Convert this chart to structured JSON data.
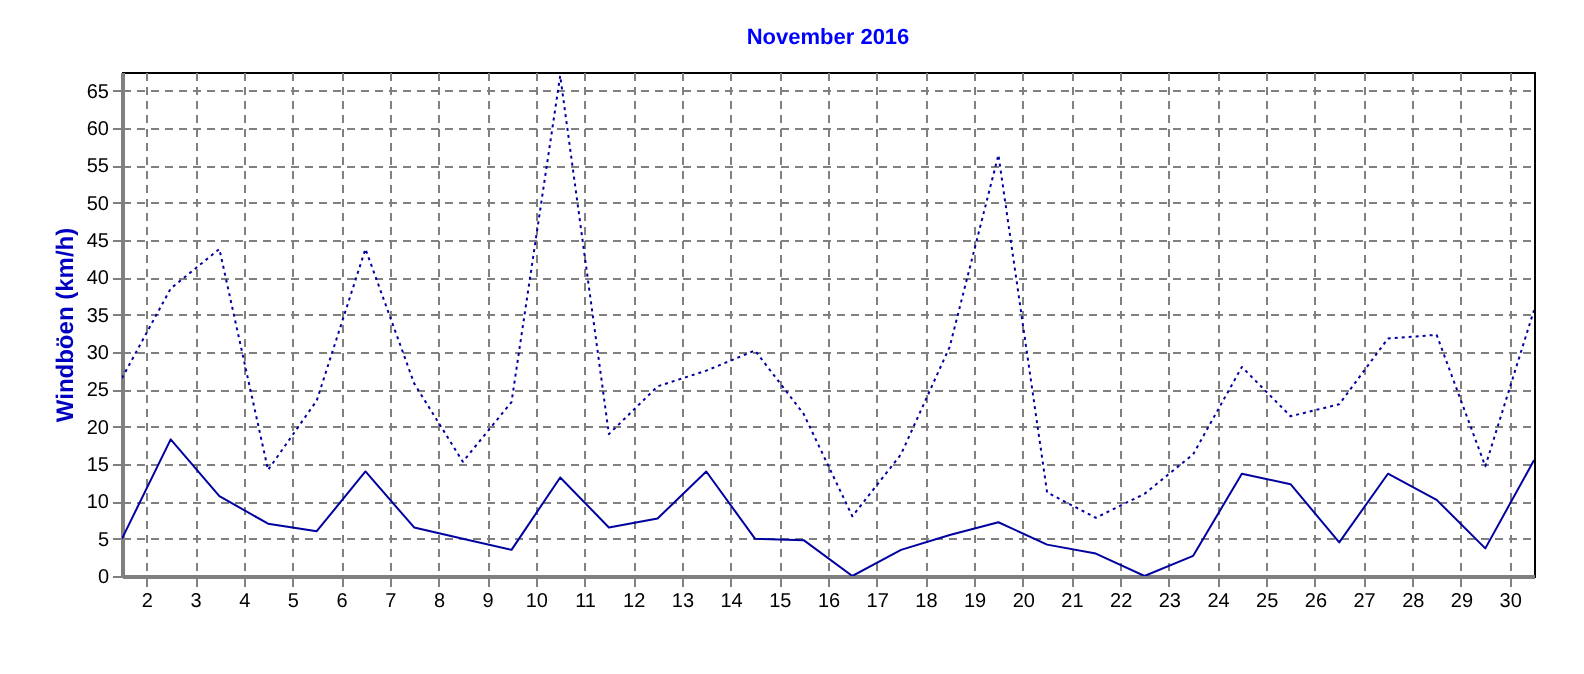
{
  "chart_data": {
    "type": "line",
    "title": "November 2016",
    "ylabel": "Windböen (km/h)",
    "x": [
      1.5,
      2.5,
      3.5,
      4.5,
      5.5,
      6.5,
      7.5,
      8.5,
      9.5,
      10.5,
      11.5,
      12.5,
      13.5,
      14.5,
      15.5,
      16.5,
      17.5,
      18.5,
      19.5,
      20.5,
      21.5,
      22.5,
      23.5,
      24.5,
      25.5,
      26.5,
      27.5,
      28.5,
      29.5,
      30.5
    ],
    "series": [
      {
        "color": "#0000a0",
        "line_style": "dotted",
        "values": [
          26.5,
          38.5,
          43.8,
          14.2,
          23.5,
          43.8,
          25.8,
          15.3,
          23.3,
          67,
          19,
          25.4,
          27.5,
          30.2,
          21.7,
          8,
          16.3,
          30.7,
          56.4,
          11.2,
          7.8,
          11,
          16.3,
          28,
          21.4,
          23,
          31.8,
          32.3,
          14.7,
          35.6
        ]
      },
      {
        "color": "#0000a0",
        "line_style": "solid",
        "values": [
          5,
          18.3,
          10.7,
          7,
          6,
          14,
          6.5,
          5,
          3.5,
          13.2,
          6.5,
          7.7,
          14,
          5,
          4.8,
          0,
          3.5,
          5.5,
          7.2,
          4.2,
          3,
          0,
          2.7,
          13.7,
          12.3,
          4.5,
          13.7,
          10.2,
          3.7,
          15.5
        ]
      }
    ],
    "xlim": [
      1.5,
      30.5
    ],
    "xticks": [
      2,
      3,
      4,
      5,
      6,
      7,
      8,
      9,
      10,
      11,
      12,
      13,
      14,
      15,
      16,
      17,
      18,
      19,
      20,
      21,
      22,
      23,
      24,
      25,
      26,
      27,
      28,
      29,
      30
    ],
    "ylim": [
      0,
      67.5
    ],
    "yticks": [
      0,
      5,
      10,
      15,
      20,
      25,
      30,
      35,
      40,
      45,
      50,
      55,
      60,
      65
    ],
    "grid": true,
    "legend": false,
    "marker": "none"
  }
}
